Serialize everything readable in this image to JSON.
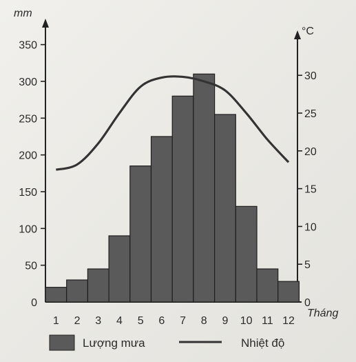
{
  "chart_data": {
    "type": "bar",
    "title": "",
    "xlabel": "Tháng",
    "categories": [
      "1",
      "2",
      "3",
      "4",
      "5",
      "6",
      "7",
      "8",
      "9",
      "10",
      "11",
      "12"
    ],
    "series": [
      {
        "name": "Lượng mưa",
        "kind": "bar",
        "axis": "left",
        "color": "#5a5a5a",
        "values": [
          20,
          30,
          45,
          90,
          185,
          225,
          280,
          310,
          255,
          130,
          45,
          28
        ]
      },
      {
        "name": "Nhiệt độ",
        "kind": "line",
        "axis": "right",
        "color": "#333333",
        "values": [
          17.5,
          18.2,
          21,
          25,
          28.5,
          29.7,
          29.8,
          29.2,
          28,
          25,
          21.5,
          18.5
        ]
      }
    ],
    "y_left": {
      "label": "mm",
      "ylim": [
        0,
        400
      ],
      "ticks": [
        0,
        50,
        100,
        150,
        200,
        250,
        300,
        350
      ]
    },
    "y_right": {
      "label": "°C",
      "ylim": [
        0,
        35
      ],
      "ticks": [
        0,
        5,
        10,
        15,
        20,
        25,
        30
      ]
    },
    "legend": {
      "placement": "bottom",
      "entries": [
        "Lượng mưa",
        "Nhiệt độ"
      ]
    },
    "grid": false
  }
}
